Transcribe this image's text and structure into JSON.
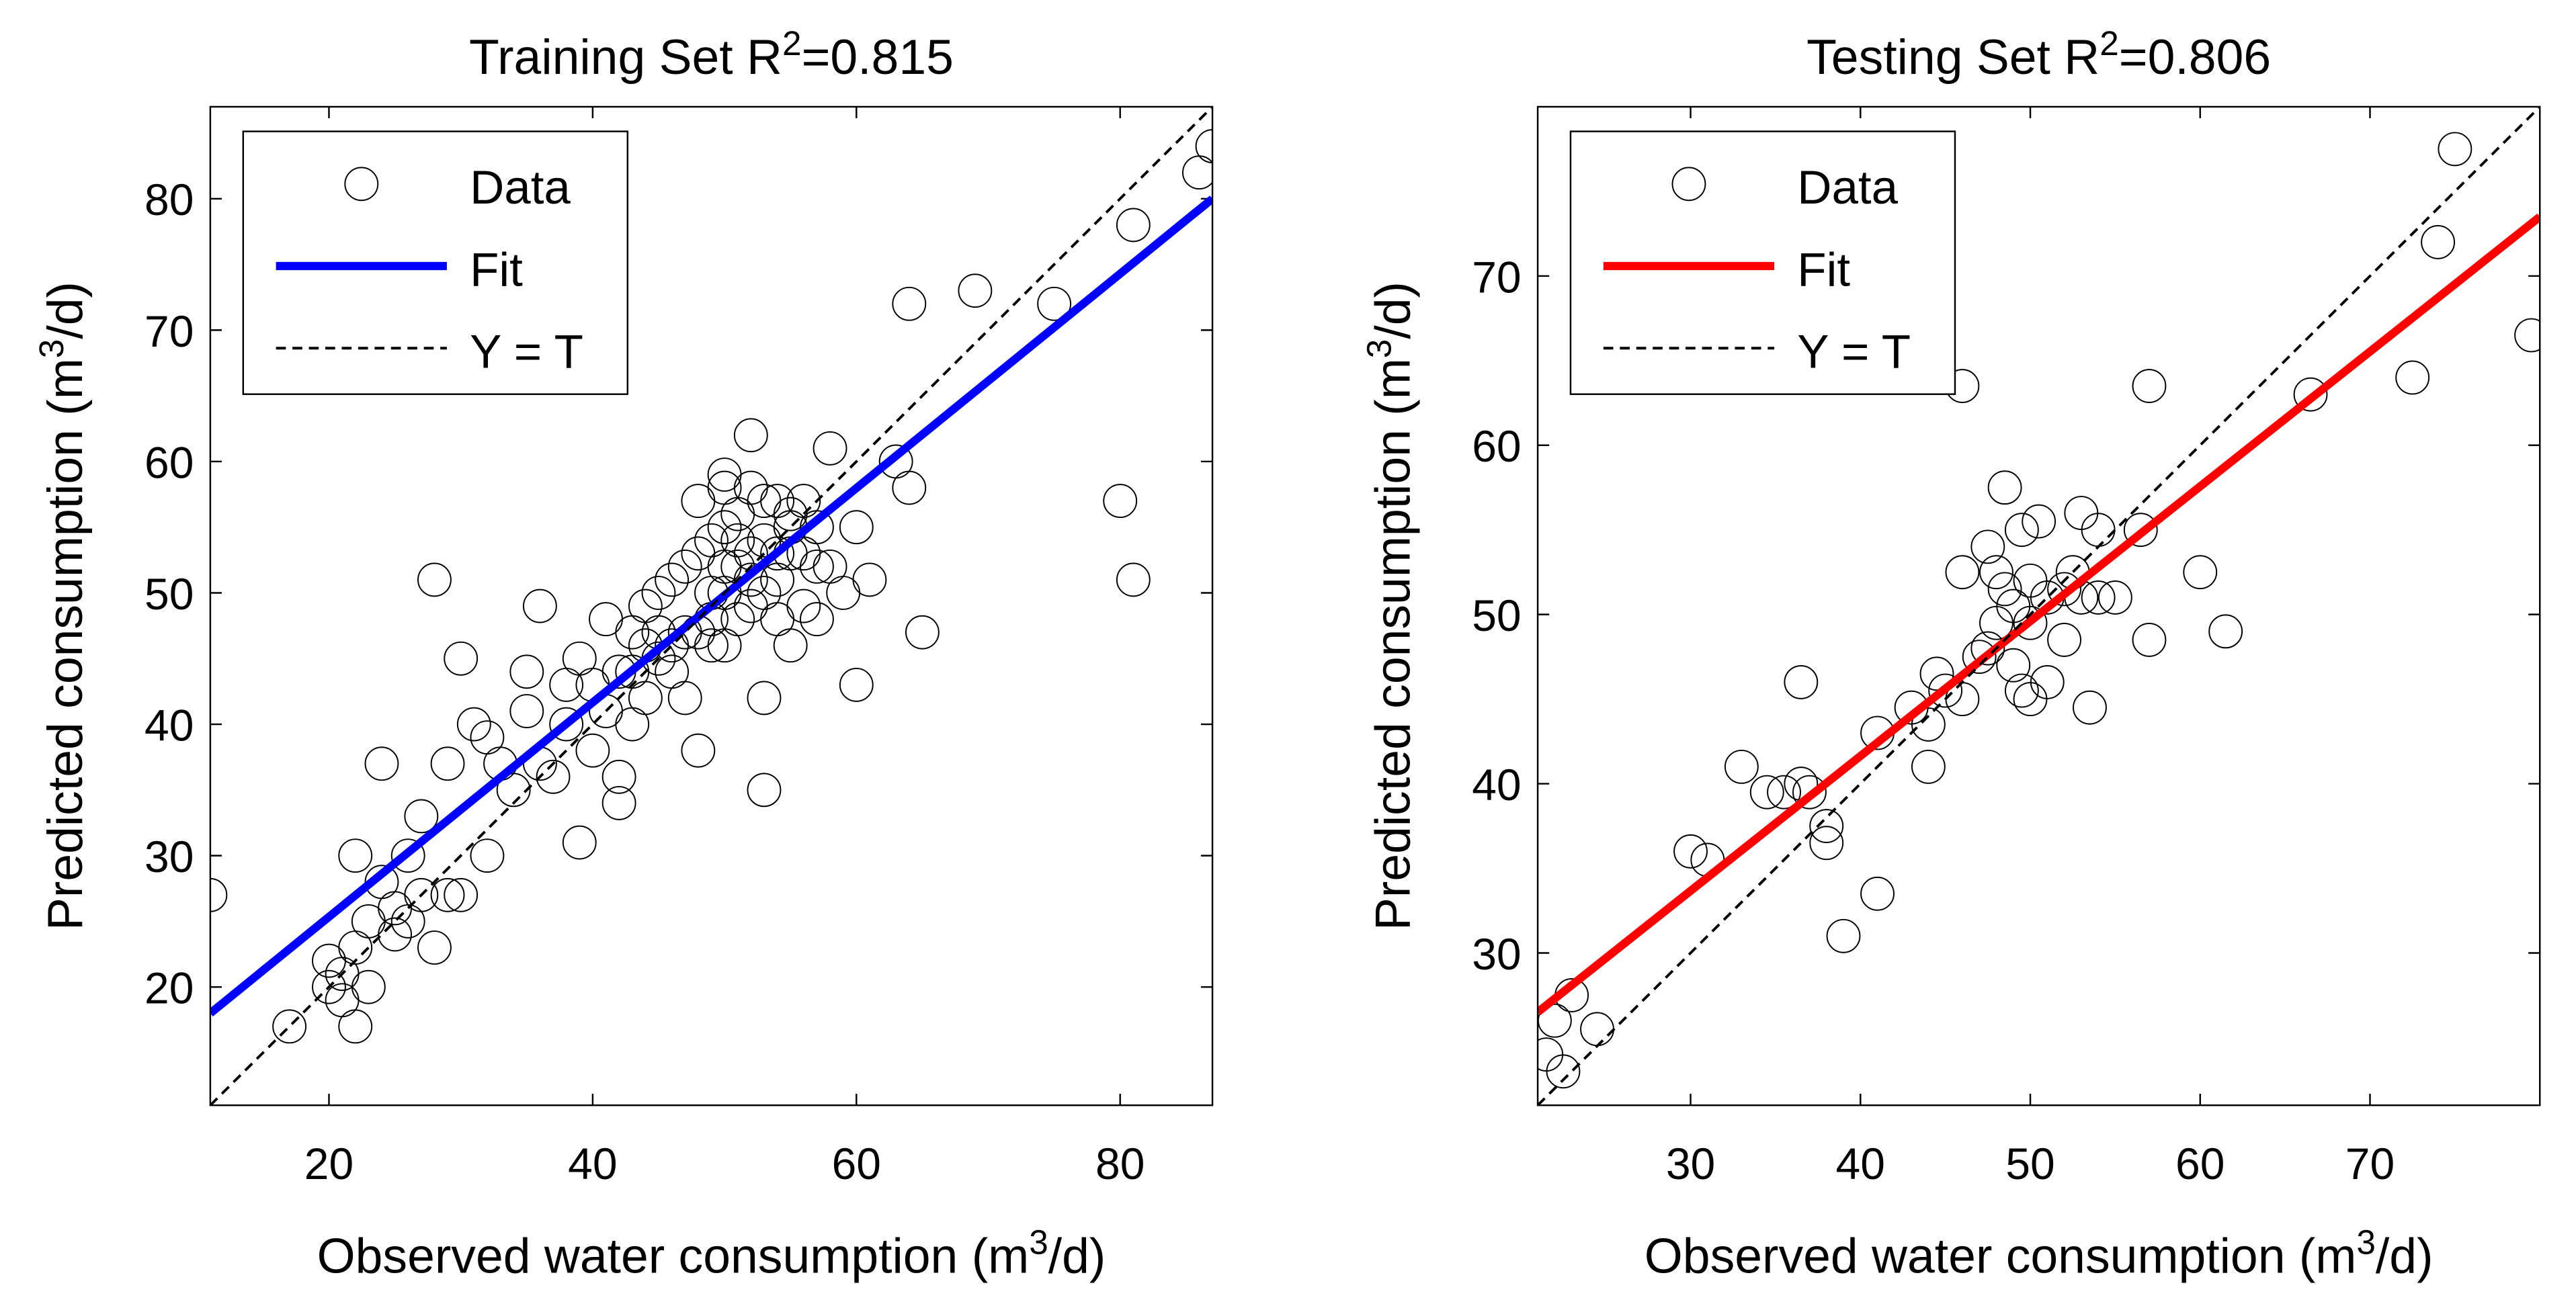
{
  "chart_data": [
    {
      "type": "scatter",
      "title": [
        "Training Set R",
        "2",
        "=0.815"
      ],
      "xlabel": [
        "Observed water consumption (m",
        "3",
        "/d)"
      ],
      "ylabel": [
        "Predicted consumption (m",
        "3",
        "/d)"
      ],
      "xlim": [
        11,
        87
      ],
      "ylim": [
        11,
        87
      ],
      "xticks": [
        20,
        40,
        60,
        80
      ],
      "yticks": [
        20,
        30,
        40,
        50,
        60,
        70,
        80
      ],
      "legend": "upper left",
      "series": [
        {
          "name": "Data",
          "color": "#000000",
          "marker": "circle",
          "x": [
            11,
            17,
            20,
            20,
            21,
            21,
            22,
            22,
            22,
            23,
            23,
            24,
            24,
            25,
            26,
            27,
            28,
            28,
            29,
            29,
            30,
            30,
            31,
            32,
            32,
            33,
            35,
            35,
            36,
            37,
            38,
            39,
            39,
            40,
            40,
            41,
            42,
            42,
            42,
            43,
            44,
            45,
            45,
            46,
            47,
            47,
            48,
            48,
            49,
            49,
            50,
            50,
            51,
            51,
            52,
            52,
            53,
            53,
            53,
            54,
            54,
            55,
            55,
            56,
            57,
            57,
            58,
            59,
            60,
            60,
            61,
            63,
            64,
            64,
            65,
            69,
            75,
            80,
            81,
            81,
            86,
            87,
            50,
            48,
            46,
            44,
            43,
            41,
            38,
            36,
            34,
            50,
            52,
            53,
            55,
            56,
            51,
            49,
            47,
            45,
            52,
            54,
            53,
            50,
            57,
            58,
            43,
            44,
            46,
            48,
            26,
            27,
            25,
            55,
            50,
            51,
            52,
            49,
            54,
            56
          ],
          "values": [
            27,
            17,
            22,
            20,
            19,
            21,
            17,
            30,
            23,
            20,
            25,
            28,
            37,
            26,
            30,
            33,
            23,
            51,
            37,
            27,
            27,
            45,
            40,
            30,
            39,
            37,
            41,
            44,
            49,
            36,
            40,
            31,
            45,
            43,
            38,
            48,
            34,
            36,
            44,
            47,
            42,
            50,
            47,
            44,
            42,
            52,
            38,
            57,
            48,
            54,
            50,
            46,
            52,
            56,
            62,
            49,
            35,
            42,
            54,
            51,
            57,
            46,
            53,
            49,
            55,
            52,
            61,
            50,
            43,
            55,
            51,
            60,
            58,
            72,
            47,
            73,
            72,
            57,
            51,
            78,
            82,
            84,
            58,
            53,
            51,
            46,
            44,
            41,
            43,
            37,
            35,
            52,
            51,
            50,
            55,
            57,
            48,
            50,
            47,
            45,
            53,
            53,
            57,
            55,
            48,
            52,
            40,
            49,
            46,
            47,
            25,
            27,
            24,
            56,
            59,
            54,
            58,
            46,
            48,
            53
          ]
        },
        {
          "name": "Fit",
          "color": "#0000ff",
          "line": "solid",
          "x": [
            11,
            87
          ],
          "values": [
            18,
            80
          ]
        },
        {
          "name": "Y = T",
          "color": "#000000",
          "line": "dashed",
          "x": [
            11,
            87
          ],
          "values": [
            11,
            87
          ]
        }
      ]
    },
    {
      "type": "scatter",
      "title": [
        "Testing Set R",
        "2",
        "=0.806"
      ],
      "xlabel": [
        "Observed water consumption (m",
        "3",
        "/d)"
      ],
      "ylabel": [
        "Predicted consumption (m",
        "3",
        "/d)"
      ],
      "xlim": [
        21,
        80
      ],
      "ylim": [
        21,
        80
      ],
      "xticks": [
        30,
        40,
        50,
        60,
        70
      ],
      "yticks": [
        30,
        40,
        50,
        60,
        70
      ],
      "legend": "upper left",
      "series": [
        {
          "name": "Data",
          "color": "#000000",
          "marker": "circle",
          "x": [
            21.5,
            22,
            22.5,
            23,
            24.5,
            30,
            31,
            33,
            34.5,
            35.5,
            36.5,
            36.5,
            37,
            38,
            38,
            39,
            41,
            41,
            43,
            44,
            44,
            44.5,
            45,
            46,
            46,
            46,
            47,
            47.5,
            47.5,
            48,
            48,
            48.5,
            48.5,
            49,
            49,
            49.5,
            49.5,
            50,
            50,
            50,
            50.5,
            51,
            51,
            52,
            52,
            52.5,
            53,
            53,
            53.5,
            54,
            54,
            55,
            56.5,
            57,
            57,
            60,
            61.5,
            66.5,
            72.5,
            74,
            75,
            79.5
          ],
          "values": [
            24,
            26,
            23,
            27.5,
            25.5,
            36,
            35.5,
            41,
            39.5,
            39.5,
            46,
            40,
            39.5,
            37.5,
            36.5,
            31,
            43,
            33.5,
            44.5,
            41,
            43.5,
            46.5,
            45.5,
            63.5,
            45,
            52.5,
            47.5,
            48,
            54,
            49.5,
            52.5,
            57.5,
            51.5,
            50.5,
            47,
            45.5,
            55,
            45,
            49.5,
            52,
            55.5,
            46,
            51,
            51.5,
            48.5,
            52.5,
            56,
            51,
            44.5,
            55,
            51,
            51,
            55,
            48.5,
            63.5,
            52.5,
            49,
            63,
            64,
            72,
            77.5,
            66.5
          ]
        },
        {
          "name": "Fit",
          "color": "#ff0000",
          "line": "solid",
          "x": [
            21,
            80
          ],
          "values": [
            26.5,
            73.5
          ]
        },
        {
          "name": "Y = T",
          "color": "#000000",
          "line": "dashed",
          "x": [
            21,
            80
          ],
          "values": [
            21,
            80
          ]
        }
      ]
    }
  ]
}
